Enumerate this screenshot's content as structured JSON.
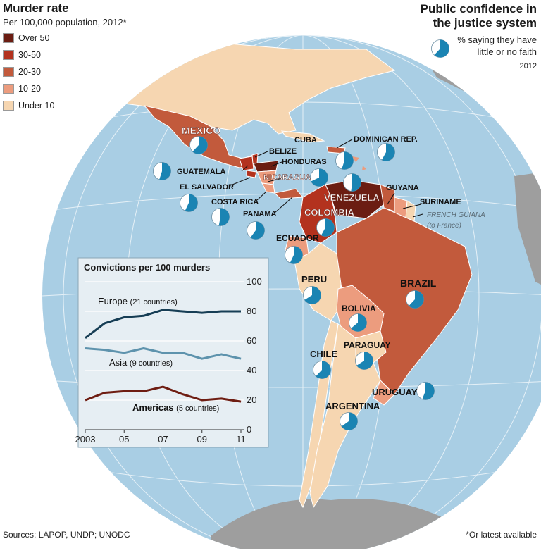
{
  "header": {
    "left_title": "Murder rate",
    "left_subtitle": "Per 100,000 population, 2012*",
    "right_title_line1": "Public confidence in",
    "right_title_line2": "the justice system",
    "right_desc_line1": "% saying they have",
    "right_desc_line2": "little or no faith",
    "right_year": "2012"
  },
  "legend": [
    {
      "label": "Over 50",
      "color": "#6b1d12"
    },
    {
      "label": "30-50",
      "color": "#b3321e"
    },
    {
      "label": "20-30",
      "color": "#c25a3c"
    },
    {
      "label": "10-20",
      "color": "#ec9c7e"
    },
    {
      "label": "Under 10",
      "color": "#f6d6b1"
    }
  ],
  "colors": {
    "ocean": "#a9cee4",
    "pie_fill": "#1a84b3",
    "pie_empty": "#ffffff",
    "grey_land": "#9e9e9e",
    "chart_bg": "#e6eef3",
    "europe": "#173e55",
    "asia": "#5e93ad",
    "americas": "#6e1d12"
  },
  "countries": [
    {
      "name": "MEXICO",
      "confidence_pct": 62
    },
    {
      "name": "CUBA",
      "confidence_pct": null
    },
    {
      "name": "DOMINICAN REP.",
      "confidence_pct": 58
    },
    {
      "name": "BELIZE",
      "confidence_pct": 55
    },
    {
      "name": "HONDURAS",
      "confidence_pct": 68
    },
    {
      "name": "GUATEMALA",
      "confidence_pct": 55
    },
    {
      "name": "NICARAGUA",
      "confidence_pct": 52
    },
    {
      "name": "EL SALVADOR",
      "confidence_pct": 57
    },
    {
      "name": "COSTA RICA",
      "confidence_pct": 53
    },
    {
      "name": "PANAMA",
      "confidence_pct": 60
    },
    {
      "name": "VENEZUELA",
      "confidence_pct": 58
    },
    {
      "name": "COLOMBIA",
      "confidence_pct": 68
    },
    {
      "name": "GUYANA",
      "confidence_pct": 50
    },
    {
      "name": "SURINAME",
      "confidence_pct": 51
    },
    {
      "name": "FRENCH GUIANA",
      "confidence_pct": null
    },
    {
      "name": "(to France)",
      "confidence_pct": null
    },
    {
      "name": "ECUADOR",
      "confidence_pct": 57
    },
    {
      "name": "BRAZIL",
      "confidence_pct": 62
    },
    {
      "name": "PERU",
      "confidence_pct": 66
    },
    {
      "name": "BOLIVIA",
      "confidence_pct": 64
    },
    {
      "name": "CHILE",
      "confidence_pct": 62
    },
    {
      "name": "PARAGUAY",
      "confidence_pct": 66
    },
    {
      "name": "URUGUAY",
      "confidence_pct": 56
    },
    {
      "name": "ARGENTINA",
      "confidence_pct": 65
    }
  ],
  "chart_data": {
    "type": "line",
    "title": "Convictions per 100 murders",
    "x": [
      2003,
      2004,
      2005,
      2006,
      2007,
      2008,
      2009,
      2010,
      2011
    ],
    "x_tick_labels": [
      "2003",
      "05",
      "07",
      "09",
      "11"
    ],
    "x_tick_values": [
      2003,
      2005,
      2007,
      2009,
      2011
    ],
    "ylim": [
      0,
      100
    ],
    "y_ticks": [
      "0",
      "20",
      "40",
      "60",
      "80",
      "100"
    ],
    "series": [
      {
        "name": "Europe",
        "note": "(21 countries)",
        "values": [
          62,
          72,
          76,
          77,
          81,
          80,
          79,
          80,
          80
        ]
      },
      {
        "name": "Asia",
        "note": "(9 countries)",
        "values": [
          55,
          54,
          52,
          55,
          52,
          52,
          48,
          51,
          48
        ]
      },
      {
        "name": "Americas",
        "note": "(5 countries)",
        "values": [
          20,
          25,
          26,
          26,
          29,
          24,
          20,
          21,
          19
        ]
      }
    ]
  },
  "footer": {
    "sources": "Sources: LAPOP, UNDP; UNODC",
    "footnote": "*Or latest available"
  }
}
